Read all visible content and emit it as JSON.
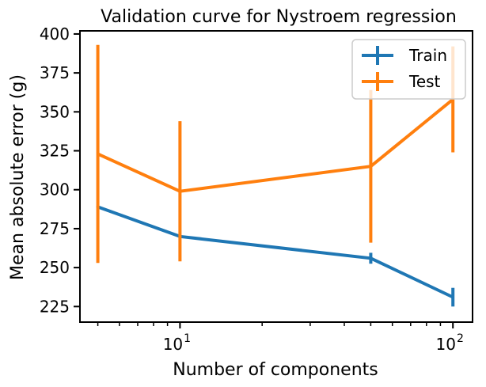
{
  "chart_data": {
    "type": "line",
    "title": "Validation curve for Nystroem regression",
    "xlabel": "Number of components",
    "ylabel": "Mean absolute error (g)",
    "xscale": "log",
    "x": [
      5,
      10,
      50,
      100
    ],
    "xlim": [
      4.3,
      118
    ],
    "ylim": [
      215,
      402
    ],
    "xticks": [
      {
        "value": 10,
        "base": "10",
        "exp": "1"
      },
      {
        "value": 100,
        "base": "10",
        "exp": "2"
      }
    ],
    "yticks": [
      225,
      250,
      275,
      300,
      325,
      350,
      375,
      400
    ],
    "grid": false,
    "legend_position": "top-right",
    "series": [
      {
        "name": "Train",
        "color": "#1f77b4",
        "values": [
          289,
          270,
          256,
          231
        ],
        "errors": [
          0.5,
          0.5,
          3.5,
          6
        ]
      },
      {
        "name": "Test",
        "color": "#ff7f0e",
        "values": [
          323,
          299,
          315,
          358
        ],
        "errors": [
          70,
          45,
          49,
          34
        ]
      }
    ]
  }
}
